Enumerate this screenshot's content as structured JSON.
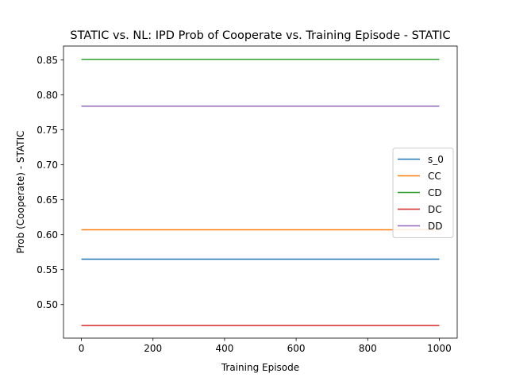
{
  "chart_data": {
    "type": "line",
    "title": "STATIC vs. NL: IPD Prob of Cooperate vs. Training Episode - STATIC",
    "xlabel": "Training Episode",
    "ylabel": "Prob (Cooperate) - STATIC",
    "xlim": [
      -50,
      1050
    ],
    "ylim": [
      0.452,
      0.87
    ],
    "xticks": [
      0,
      200,
      400,
      600,
      800,
      1000
    ],
    "xtick_labels": [
      "0",
      "200",
      "400",
      "600",
      "800",
      "1000"
    ],
    "yticks": [
      0.5,
      0.55,
      0.6,
      0.65,
      0.7,
      0.75,
      0.8,
      0.85
    ],
    "ytick_labels": [
      "0.50",
      "0.55",
      "0.60",
      "0.65",
      "0.70",
      "0.75",
      "0.80",
      "0.85"
    ],
    "legend_position": "center-right",
    "series": [
      {
        "name": "s_0",
        "color": "#1f77b4",
        "x": [
          0,
          1000
        ],
        "y": [
          0.565,
          0.565
        ]
      },
      {
        "name": "CC",
        "color": "#ff7f0e",
        "x": [
          0,
          1000
        ],
        "y": [
          0.607,
          0.607
        ]
      },
      {
        "name": "CD",
        "color": "#2ca02c",
        "x": [
          0,
          1000
        ],
        "y": [
          0.851,
          0.851
        ]
      },
      {
        "name": "DC",
        "color": "#d62728",
        "x": [
          0,
          1000
        ],
        "y": [
          0.47,
          0.47
        ]
      },
      {
        "name": "DD",
        "color": "#9467bd",
        "x": [
          0,
          1000
        ],
        "y": [
          0.784,
          0.784
        ]
      }
    ]
  }
}
